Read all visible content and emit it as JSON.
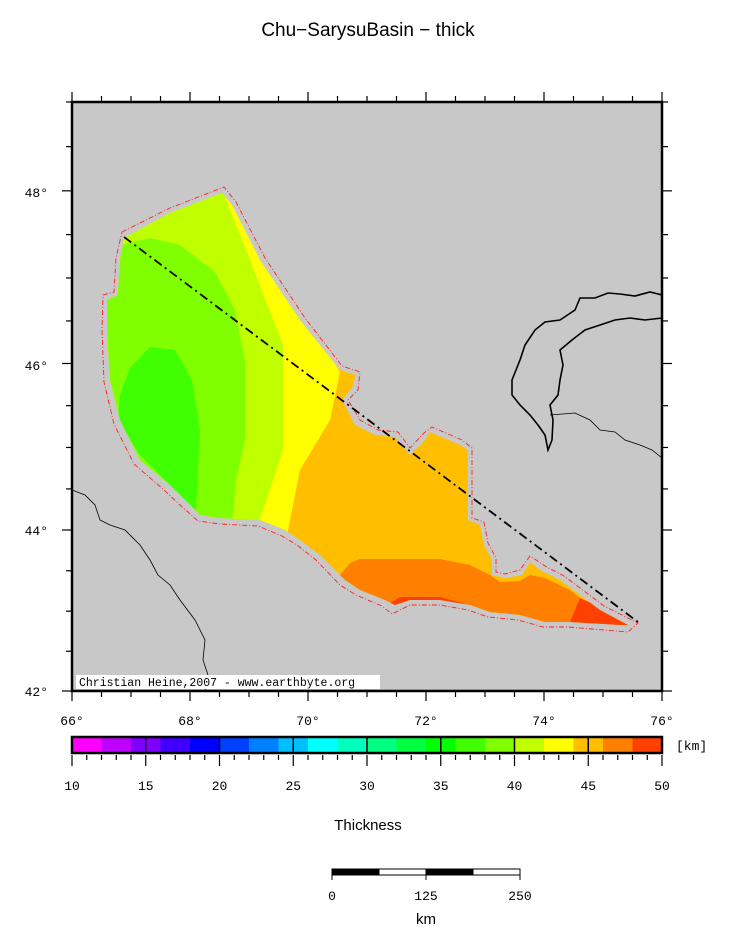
{
  "title": "Chu−SarysuBasin − thick",
  "map": {
    "lon_range": [
      66,
      76
    ],
    "lat_range": [
      42,
      49
    ],
    "projection": "mercator",
    "background_color": "#c8c8c8",
    "lon_labels": [
      "66°",
      "68°",
      "70°",
      "72°",
      "74°",
      "76°"
    ],
    "lat_labels": [
      "42°",
      "44°",
      "46°",
      "48°"
    ],
    "credit": "Christian Heine,2007 - www.earthbyte.org",
    "outline_color": "#ff2020",
    "profile_line": {
      "start": [
        66.9,
        47.5
      ],
      "end": [
        75.6,
        42.9
      ]
    }
  },
  "colorbar": {
    "min": 10,
    "max": 50,
    "step": 2,
    "unit": "[km]",
    "label": "Thickness",
    "tick_labels": [
      "10",
      "15",
      "20",
      "25",
      "30",
      "35",
      "40",
      "45",
      "50"
    ],
    "colors": [
      "#ff00ff",
      "#bf00ff",
      "#8000ff",
      "#4000ff",
      "#0000ff",
      "#0040ff",
      "#0080ff",
      "#00bfff",
      "#00ffff",
      "#00ffbf",
      "#00ff80",
      "#00ff40",
      "#00ff00",
      "#40ff00",
      "#80ff00",
      "#bfff00",
      "#ffff00",
      "#ffbf00",
      "#ff8000",
      "#ff4000"
    ]
  },
  "scalebar": {
    "labels": [
      "0",
      "125",
      "250"
    ],
    "unit": "km"
  }
}
